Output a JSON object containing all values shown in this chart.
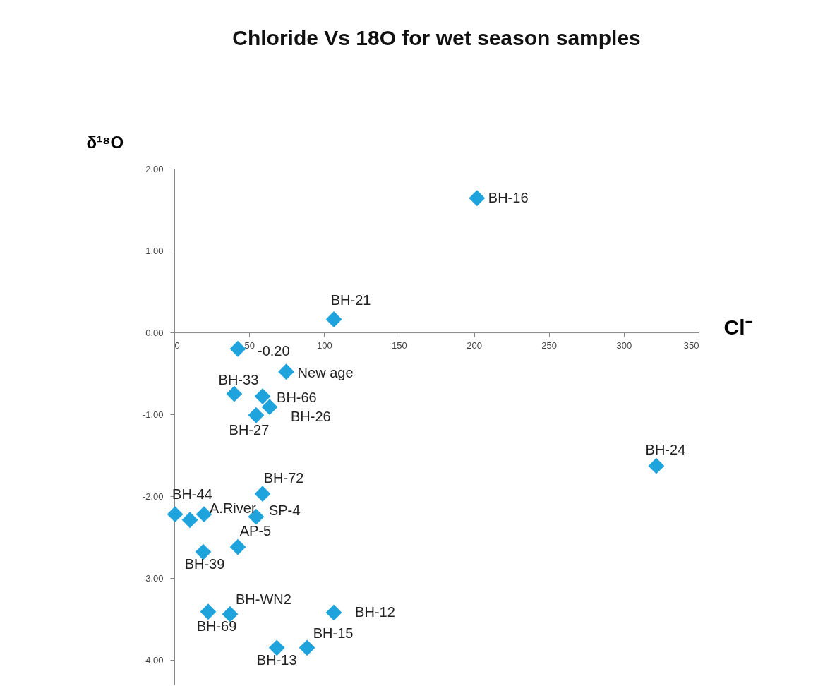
{
  "chart_data": {
    "type": "scatter",
    "title": "Chloride Vs 18O for wet season samples",
    "xlabel": "Cl⁻",
    "ylabel": "δ¹⁸O",
    "xlim": [
      0,
      350
    ],
    "xticks": [
      0,
      50,
      100,
      150,
      200,
      250,
      300,
      350
    ],
    "ylim": [
      -4.3,
      2.0
    ],
    "yticks": [
      {
        "value": 2,
        "label": "2.00"
      },
      {
        "value": 1,
        "label": "1.00"
      },
      {
        "value": 0,
        "label": "0.00"
      },
      {
        "value": -1,
        "label": "-1.00"
      },
      {
        "value": -2,
        "label": "-2.00"
      },
      {
        "value": -3,
        "label": "-3.00"
      },
      {
        "value": -4,
        "label": "-4.00"
      }
    ],
    "marker": "diamond",
    "series": [
      {
        "color": "#1fa3dc",
        "x": [
          202,
          106.5,
          42.4,
          74.7,
          40,
          58.9,
          63.6,
          54.6,
          321.7,
          58.9,
          0.5,
          10.4,
          19.8,
          54.6,
          42.4,
          19.3,
          22.6,
          37.2,
          106.5,
          68.4,
          88.6
        ],
        "values": [
          1.64,
          0.16,
          -0.2,
          -0.48,
          -0.75,
          -0.78,
          -0.91,
          -1.01,
          -1.63,
          -1.97,
          -2.22,
          -2.29,
          -2.22,
          -2.25,
          -2.62,
          -2.68,
          -3.41,
          -3.44,
          -3.42,
          -3.85,
          -3.85
        ]
      }
    ],
    "annotations": [
      {
        "text": "BH-16",
        "x": 202,
        "y": 1.64
      },
      {
        "text": "BH-21",
        "x": 106.5,
        "y": 0.16
      },
      {
        "text": "-0.20",
        "x": 42.4,
        "y": -0.2
      },
      {
        "text": "New age",
        "x": 74.7,
        "y": -0.48
      },
      {
        "text": "BH-33",
        "x": 40,
        "y": -0.75
      },
      {
        "text": "BH-66",
        "x": 58.9,
        "y": -0.78
      },
      {
        "text": "BH-26",
        "x": 63.6,
        "y": -0.91
      },
      {
        "text": "BH-27",
        "x": 54.6,
        "y": -1.01
      },
      {
        "text": "BH-24",
        "x": 321.7,
        "y": -1.63
      },
      {
        "text": "BH-72",
        "x": 58.9,
        "y": -1.97
      },
      {
        "text": "BH-44",
        "x": 0.5,
        "y": -2.22
      },
      {
        "text": "A.River",
        "x": 19.8,
        "y": -2.22
      },
      {
        "text": "SP-4",
        "x": 54.6,
        "y": -2.25
      },
      {
        "text": "AP-5",
        "x": 42.4,
        "y": -2.62
      },
      {
        "text": "BH-39",
        "x": 19.3,
        "y": -2.68
      },
      {
        "text": "BH-69",
        "x": 22.6,
        "y": -3.41
      },
      {
        "text": "BH-WN2",
        "x": 37.2,
        "y": -3.44
      },
      {
        "text": "BH-12",
        "x": 106.5,
        "y": -3.42
      },
      {
        "text": "BH-13",
        "x": 68.4,
        "y": -3.85
      },
      {
        "text": "BH-15",
        "x": 88.6,
        "y": -3.85
      }
    ]
  }
}
